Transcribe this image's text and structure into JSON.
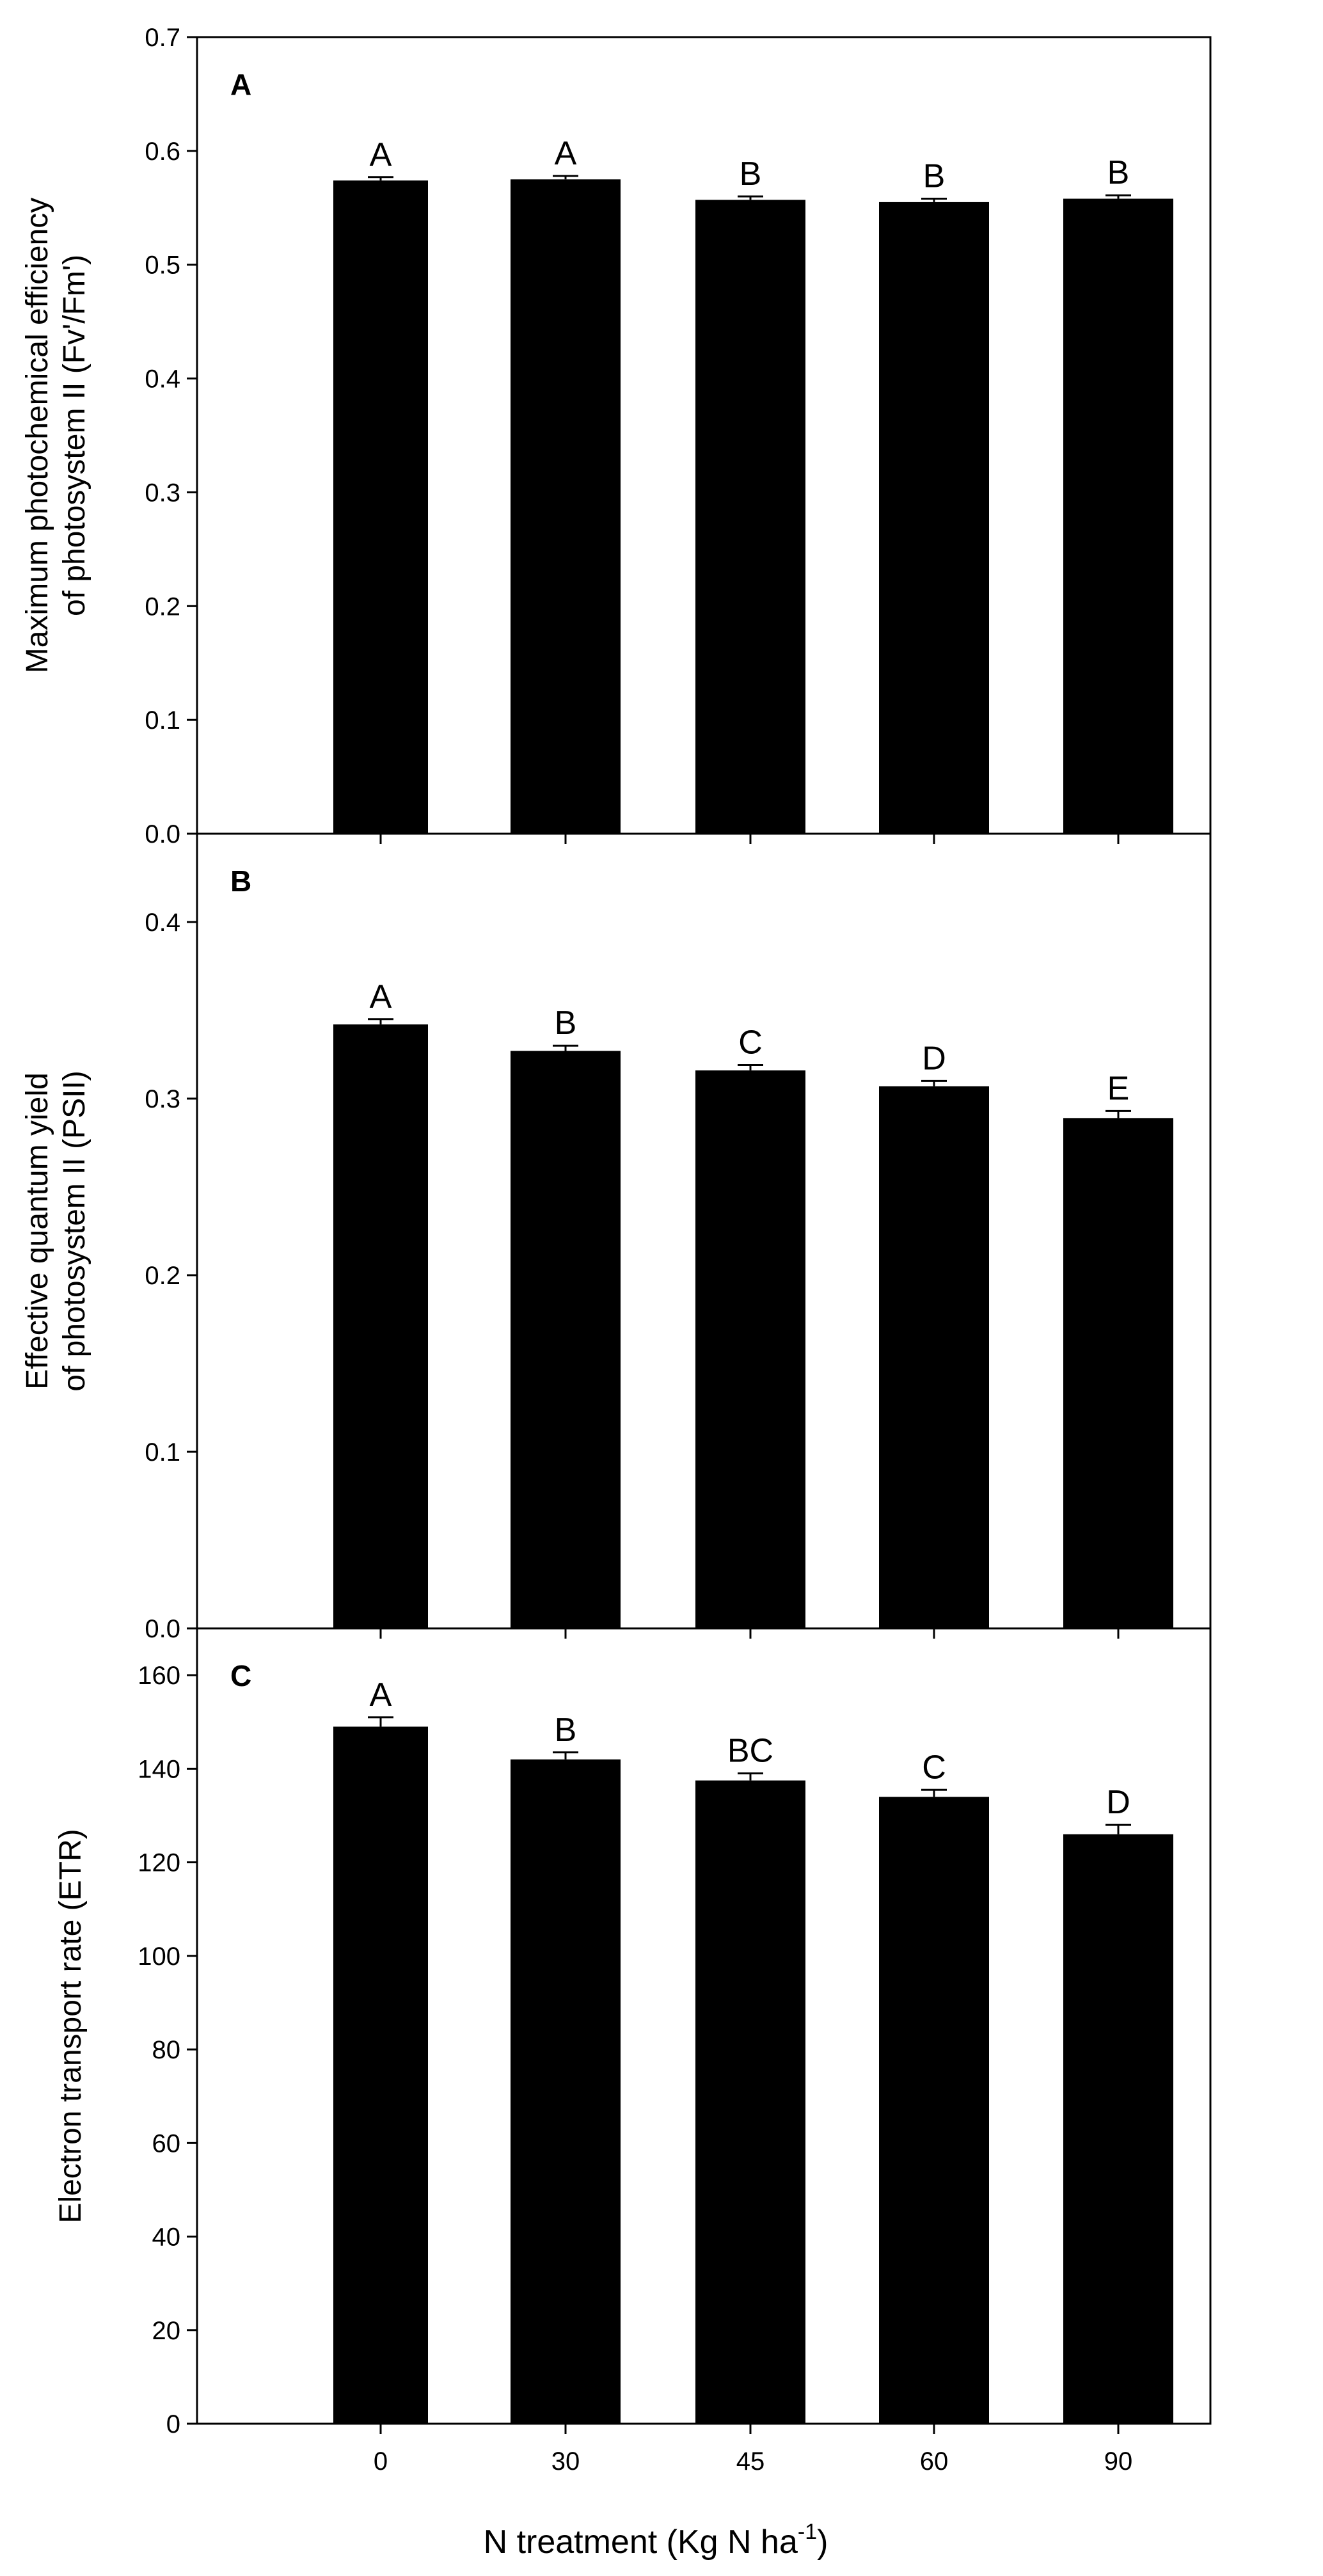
{
  "chart_data": [
    {
      "type": "bar",
      "panel_label": "A",
      "categories": [
        "0",
        "30",
        "45",
        "60",
        "90"
      ],
      "values": [
        0.574,
        0.575,
        0.557,
        0.555,
        0.558
      ],
      "errors": [
        0.003,
        0.003,
        0.003,
        0.003,
        0.003
      ],
      "significance": [
        "A",
        "A",
        "B",
        "B",
        "B"
      ],
      "ylabel_lines": [
        "Maximum photochemical efficiency",
        "of photosystem II (Fv'/Fm')"
      ],
      "ylim": [
        0,
        0.7
      ],
      "yticks": [
        "0.0",
        "0.1",
        "0.2",
        "0.3",
        "0.4",
        "0.5",
        "0.6",
        "0.7"
      ],
      "bar_color": "#000000",
      "grid": false
    },
    {
      "type": "bar",
      "panel_label": "B",
      "categories": [
        "0",
        "30",
        "45",
        "60",
        "90"
      ],
      "values": [
        0.342,
        0.327,
        0.316,
        0.307,
        0.289
      ],
      "errors": [
        0.003,
        0.003,
        0.003,
        0.003,
        0.004
      ],
      "significance": [
        "A",
        "B",
        "C",
        "D",
        "E"
      ],
      "ylabel_lines": [
        "Effective quantum yield",
        "of photosystem II (PSII)"
      ],
      "ylim": [
        0,
        0.45
      ],
      "yticks": [
        "0.0",
        "0.1",
        "0.2",
        "0.3",
        "0.4"
      ],
      "bar_color": "#000000",
      "grid": false
    },
    {
      "type": "bar",
      "panel_label": "C",
      "categories": [
        "0",
        "30",
        "45",
        "60",
        "90"
      ],
      "values": [
        149,
        142,
        137.5,
        134,
        126
      ],
      "errors": [
        2,
        1.5,
        1.5,
        1.5,
        2
      ],
      "significance": [
        "A",
        "B",
        "BC",
        "C",
        "D"
      ],
      "ylabel_lines": [
        "Electron transport rate (ETR)"
      ],
      "ylim": [
        0,
        170
      ],
      "yticks": [
        "0",
        "20",
        "40",
        "60",
        "80",
        "100",
        "120",
        "140",
        "160"
      ],
      "bar_color": "#000000",
      "grid": false
    }
  ],
  "xlabel": {
    "main": "N treatment (Kg N ha",
    "sup": "-1",
    "close": ")"
  }
}
